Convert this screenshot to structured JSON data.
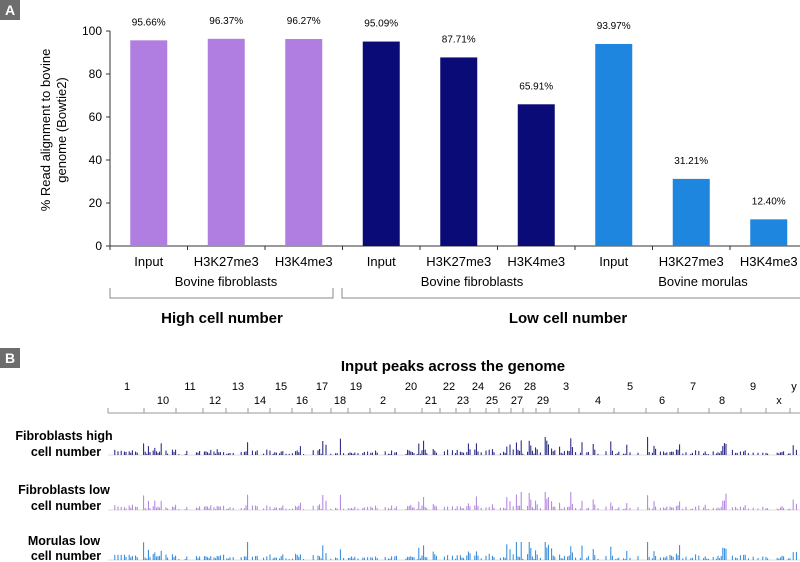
{
  "panel_a": {
    "letter": "A",
    "group_fibro_high": "Bovine fibroblasts",
    "group_fibro_low": "Bovine fibroblasts",
    "group_morulas": "Bovine morulas",
    "high_label": "High cell number",
    "low_label": "Low cell number"
  },
  "panel_b": {
    "letter": "B",
    "title": "Input peaks across the genome",
    "chromosomes_top": [
      "1",
      "11",
      "13",
      "15",
      "17",
      "19",
      "20",
      "22",
      "24",
      "26",
      "28",
      "3",
      "5",
      "7",
      "9",
      "y"
    ],
    "chromosomes_bottom": [
      "10",
      "12",
      "14",
      "16",
      "18",
      "2",
      "21",
      "23",
      "25",
      "27",
      "29",
      "4",
      "6",
      "8",
      "x"
    ],
    "tracks": [
      {
        "line1": "Fibroblasts high",
        "line2": "cell number",
        "color": "#1a1a7a"
      },
      {
        "line1": "Fibroblasts low",
        "line2": "cell number",
        "color": "#b07ee0"
      },
      {
        "line1": "Morulas low",
        "line2": "cell number",
        "color": "#2a86d8"
      }
    ]
  },
  "chart_data": {
    "type": "bar",
    "ylabel_line1": "% Read alignment to bovine",
    "ylabel_line2": "genome (Bowtie2)",
    "ylim": [
      0,
      100
    ],
    "yticks": [
      0,
      20,
      40,
      60,
      80,
      100
    ],
    "categories": [
      "Input",
      "H3K27me3",
      "H3K4me3",
      "Input",
      "H3K27me3",
      "H3K4me3",
      "Input",
      "H3K27me3",
      "H3K4me3"
    ],
    "values": [
      95.66,
      96.37,
      96.27,
      95.09,
      87.71,
      65.91,
      93.97,
      31.21,
      12.4
    ],
    "value_labels": [
      "95.66%",
      "96.37%",
      "96.27%",
      "95.09%",
      "87.71%",
      "65.91%",
      "93.97%",
      "31.21%",
      "12.40%"
    ],
    "colors": [
      "#b07ee0",
      "#b07ee0",
      "#b07ee0",
      "#0b0b78",
      "#0b0b78",
      "#0b0b78",
      "#1f86e0",
      "#1f86e0",
      "#1f86e0"
    ]
  }
}
